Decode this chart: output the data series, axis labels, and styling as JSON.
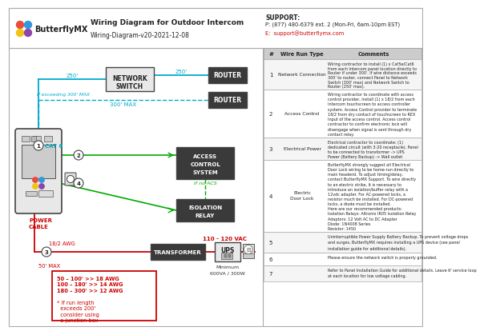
{
  "title": "Wiring Diagram for Outdoor Intercom",
  "subtitle": "Wiring-Diagram-v20-2021-12-08",
  "logo_text": "ButterflyMX",
  "support_line1": "SUPPORT:",
  "support_line2": "P: (877) 480-6379 ext. 2 (Mon-Fri, 6am-10pm EST)",
  "support_line3": "E:  support@butterflymx.com",
  "bg_color": "#ffffff",
  "cyan": "#00aacc",
  "green": "#00aa00",
  "red": "#cc0000",
  "dark": "#3a3a3a",
  "logo_colors": [
    "#e74c3c",
    "#3498db",
    "#f1c40f",
    "#8e44ad"
  ],
  "table_rows": [
    {
      "num": "1",
      "type": "Network Connection",
      "comment": "Wiring contractor to install (1) x Cat5e/Cat6\nfrom each Intercom panel location directly to\nRouter if under 300'. If wire distance exceeds\n300' to router, connect Panel to Network\nSwitch (300' max) and Network Switch to\nRouter (250' max)."
    },
    {
      "num": "2",
      "type": "Access Control",
      "comment": "Wiring contractor to coordinate with access\ncontrol provider, install (1) x 18/2 from each\nIntercom touchscreen to access controller\nsystem. Access Control provider to terminate\n18/2 from dry contact of touchscreen to REX\nInput of the access control. Access control\ncontractor to confirm electronic lock will\ndisengage when signal is sent through dry\ncontact relay."
    },
    {
      "num": "3",
      "type": "Electrical Power",
      "comment": "Electrical contractor to coordinate: (1)\ndedicated circuit (with 3-20 receptacle). Panel\nto be connected to transformer -> UPS\nPower (Battery Backup) -> Wall outlet"
    },
    {
      "num": "4",
      "type": "Electric Door Lock",
      "comment": "ButterflyMX strongly suggest all Electrical\nDoor Lock wiring to be home-run directly to\nmain headend. To adjust timing/delay,\ncontact ButterflyMX Support. To wire directly\nto an electric strike, it is necessary to\nintroduce an isolation/buffer relay with a\n12vdc adapter. For AC-powered locks, a\nresistor much be installed. For DC-powered\nlocks, a diode must be installed.\nHere are our recommended products:\nIsolation Relays: Altronix IR05 Isolation Relay\nAdaptors: 12 Volt AC to DC Adapter\nDiode: 1N4008 Series\nResistor: 1450"
    },
    {
      "num": "5",
      "type": "",
      "comment": "Uninterruptible Power Supply Battery Backup. To prevent voltage drops\nand surges, ButterflyMX requires installing a UPS device (see panel\ninstallation guide for additional details)."
    },
    {
      "num": "6",
      "type": "",
      "comment": "Please ensure the network switch is properly grounded."
    },
    {
      "num": "7",
      "type": "",
      "comment": "Refer to Panel Installation Guide for additional details. Leave 6' service loop\nat each location for low voltage cabling."
    }
  ]
}
